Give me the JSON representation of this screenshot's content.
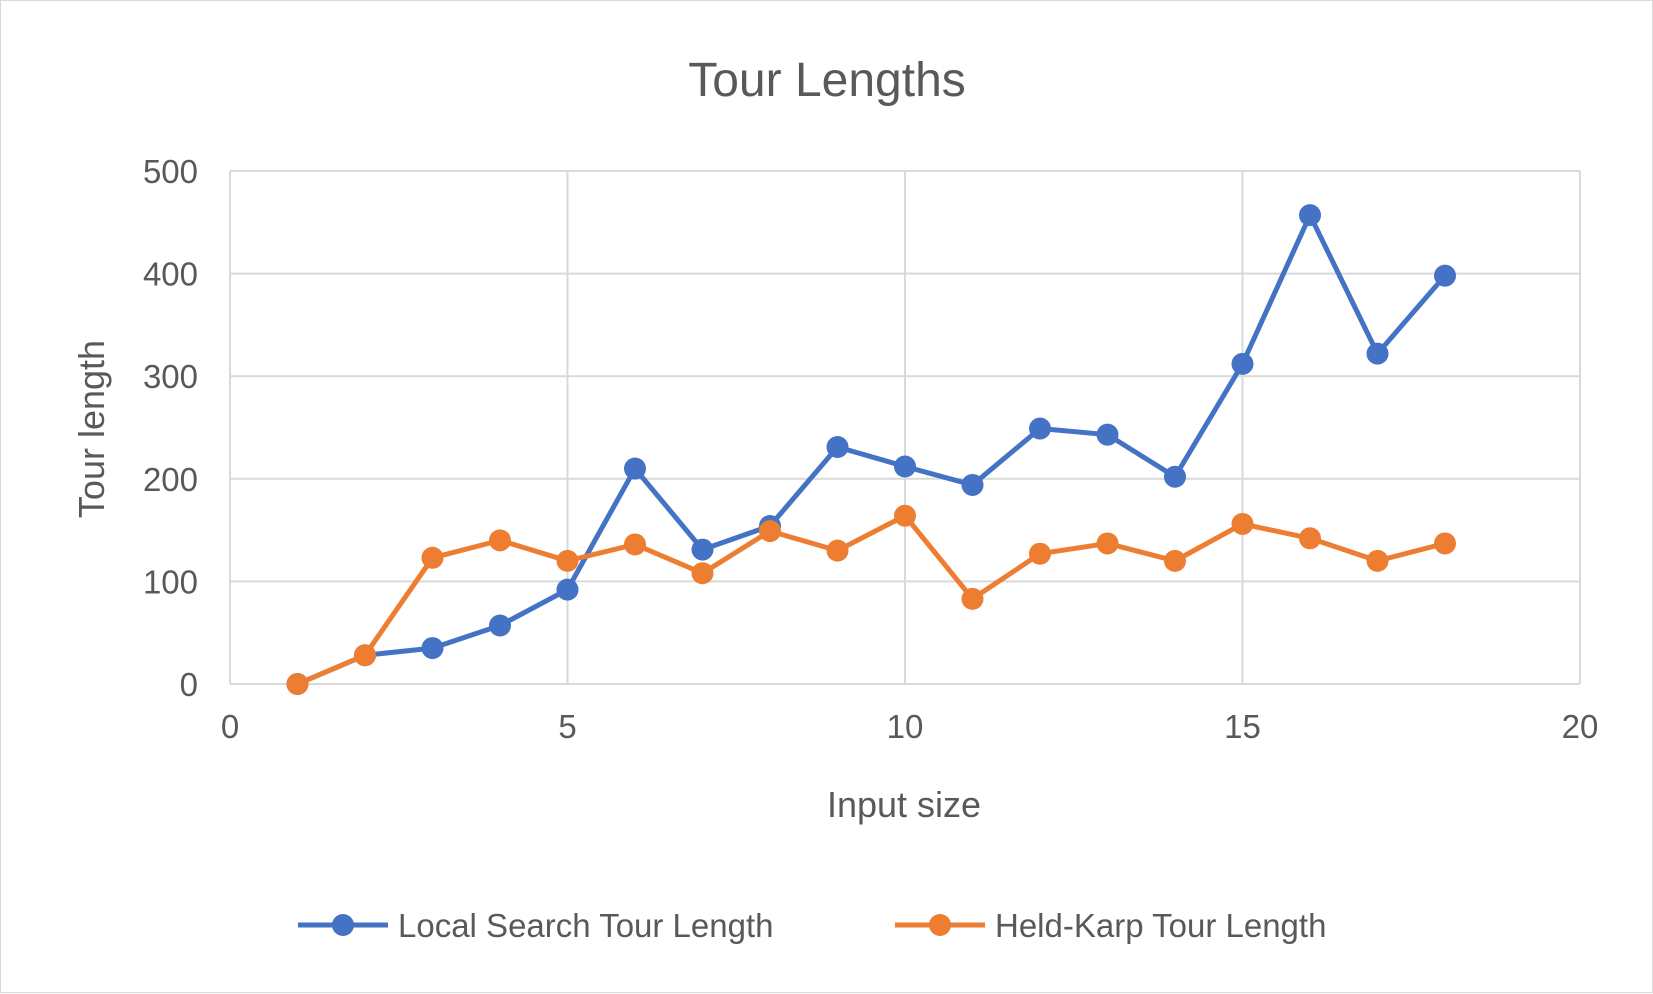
{
  "chart_data": {
    "type": "scatter",
    "title": "Tour Lengths",
    "xlabel": "Input size",
    "ylabel": "Tour length",
    "xlim": [
      0,
      20
    ],
    "ylim": [
      0,
      500
    ],
    "xticks": [
      0,
      5,
      10,
      15,
      20
    ],
    "yticks": [
      0,
      100,
      200,
      300,
      400,
      500
    ],
    "grid": true,
    "legend_position": "bottom",
    "series": [
      {
        "name": "Local Search Tour Length",
        "color": "#4472C4",
        "marker": "circle",
        "x": [
          1,
          2,
          3,
          4,
          5,
          6,
          7,
          8,
          9,
          10,
          11,
          12,
          13,
          14,
          15,
          16,
          17,
          18
        ],
        "values": [
          0,
          28,
          35,
          57,
          92,
          210,
          131,
          154,
          231,
          212,
          194,
          249,
          243,
          202,
          312,
          457,
          322,
          398
        ]
      },
      {
        "name": "Held-Karp Tour Length",
        "color": "#ED7D31",
        "marker": "circle",
        "x": [
          1,
          2,
          3,
          4,
          5,
          6,
          7,
          8,
          9,
          10,
          11,
          12,
          13,
          14,
          15,
          16,
          17,
          18
        ],
        "values": [
          0,
          28,
          123,
          140,
          120,
          136,
          108,
          149,
          130,
          164,
          83,
          127,
          137,
          120,
          156,
          142,
          120,
          137
        ]
      }
    ]
  }
}
